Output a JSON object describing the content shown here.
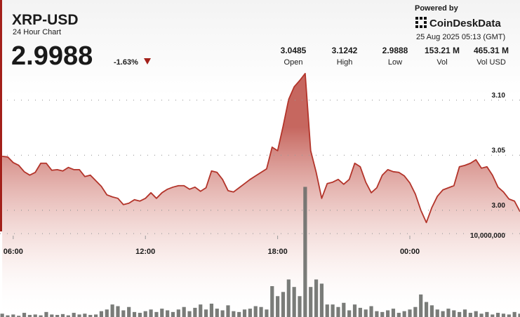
{
  "chart_data": {
    "type": "line",
    "title": "XRP-USD",
    "subtitle": "24 Hour Chart",
    "price": 2.9988,
    "change": "-1.63%",
    "stats": [
      {
        "value": "3.0485",
        "label": "Open"
      },
      {
        "value": "3.1242",
        "label": "High"
      },
      {
        "value": "2.9888",
        "label": "Low"
      },
      {
        "value": "153.21 M",
        "label": "Vol"
      },
      {
        "value": "465.31 M",
        "label": "Vol USD"
      }
    ],
    "powered_by": "Powered by",
    "brand": "CoinDeskData",
    "timestamp": "25 Aug 2025 05:13 (GMT)",
    "x": [
      5.5,
      5.75,
      6,
      6.25,
      6.5,
      6.75,
      7,
      7.25,
      7.5,
      7.75,
      8,
      8.25,
      8.5,
      8.75,
      9,
      9.25,
      9.5,
      9.75,
      10,
      10.25,
      10.5,
      10.75,
      11,
      11.25,
      11.5,
      11.75,
      12,
      12.25,
      12.5,
      12.75,
      13,
      13.25,
      13.5,
      13.75,
      14,
      14.25,
      14.5,
      14.75,
      15,
      15.25,
      15.5,
      15.75,
      16,
      16.25,
      16.5,
      16.75,
      17,
      17.25,
      17.5,
      17.75,
      18,
      18.25,
      18.5,
      18.75,
      19,
      19.25,
      19.5,
      19.75,
      20,
      20.25,
      20.5,
      20.75,
      21,
      21.25,
      21.5,
      21.75,
      22,
      22.25,
      22.5,
      22.75,
      23,
      23.25,
      23.5,
      23.75,
      24,
      24.25,
      24.5,
      24.75,
      25,
      25.25,
      25.5,
      25.75,
      26,
      26.25,
      26.5,
      26.75,
      27,
      27.25,
      27.5,
      27.75,
      28,
      28.25,
      28.5,
      28.75,
      29
    ],
    "xlim": [
      5.4,
      29
    ],
    "xticks": [
      {
        "value": 6,
        "label": "06:00"
      },
      {
        "value": 12,
        "label": "12:00"
      },
      {
        "value": 18,
        "label": "18:00"
      },
      {
        "value": 24,
        "label": "00:00"
      }
    ],
    "ylim": [
      2.903,
      3.191
    ],
    "yticks": [
      {
        "value": 3,
        "label": "3.00"
      },
      {
        "value": 3.05,
        "label": "3.05"
      },
      {
        "value": 3.1,
        "label": "3.10"
      }
    ],
    "y2lim": [
      0,
      38000000
    ],
    "y2ticks": [
      {
        "value": 10000000,
        "label": "10,000,000"
      }
    ],
    "grid": true,
    "series": [
      {
        "type": "area",
        "color": "#b3342a",
        "values": [
          3.049,
          3.0484,
          3.0433,
          3.0408,
          3.035,
          3.0319,
          3.0344,
          3.0427,
          3.0427,
          3.0363,
          3.0369,
          3.0357,
          3.0389,
          3.0369,
          3.0369,
          3.0306,
          3.0319,
          3.0268,
          3.0217,
          3.014,
          3.0121,
          3.0108,
          3.0051,
          3.0064,
          3.0096,
          3.0083,
          3.0108,
          3.0159,
          3.0108,
          3.0159,
          3.0191,
          3.021,
          3.0223,
          3.0223,
          3.0191,
          3.021,
          3.0172,
          3.0204,
          3.0357,
          3.0344,
          3.028,
          3.0178,
          3.0166,
          3.0204,
          3.0242,
          3.028,
          3.0312,
          3.0344,
          3.0376,
          3.0573,
          3.0541,
          3.0764,
          3.1006,
          3.1121,
          3.1178,
          3.1242,
          3.0541,
          3.0344,
          3.0108,
          3.0242,
          3.0255,
          3.028,
          3.0236,
          3.028,
          3.0427,
          3.0395,
          3.0255,
          3.0159,
          3.0204,
          3.0319,
          3.0369,
          3.035,
          3.0344,
          3.0312,
          3.0248,
          3.0147,
          3,
          2.9888,
          3.0025,
          3.0127,
          3.0185,
          3.0204,
          3.0223,
          3.0395,
          3.0408,
          3.0427,
          3.0459,
          3.0382,
          3.0395,
          3.0319,
          3.021,
          3.0166,
          3.0102,
          3.0083,
          2.9988
        ]
      },
      {
        "type": "bar",
        "axis": "y2",
        "color": "#6b6e6a",
        "values": [
          400000,
          200000,
          300000,
          150000,
          500000,
          250000,
          300000,
          200000,
          600000,
          300000,
          250000,
          350000,
          200000,
          500000,
          300000,
          400000,
          250000,
          300000,
          700000,
          900000,
          1500000,
          1300000,
          800000,
          1200000,
          600000,
          500000,
          700000,
          900000,
          600000,
          1000000,
          800000,
          600000,
          900000,
          1200000,
          700000,
          1100000,
          1500000,
          900000,
          1600000,
          1000000,
          800000,
          1400000,
          700000,
          600000,
          900000,
          1000000,
          1300000,
          1200000,
          900000,
          3700000,
          2500000,
          3000000,
          4500000,
          3600000,
          2500000,
          15600000,
          3600000,
          4500000,
          4000000,
          1500000,
          1500000,
          1200000,
          1700000,
          800000,
          1500000,
          1100000,
          900000,
          1300000,
          700000,
          600000,
          800000,
          1000000,
          500000,
          700000,
          900000,
          1200000,
          2700000,
          1800000,
          1400000,
          900000,
          700000,
          1000000,
          800000,
          600000,
          900000,
          500000,
          700000,
          400000,
          600000,
          300000,
          500000,
          400000,
          300000,
          600000,
          400000
        ]
      }
    ]
  }
}
